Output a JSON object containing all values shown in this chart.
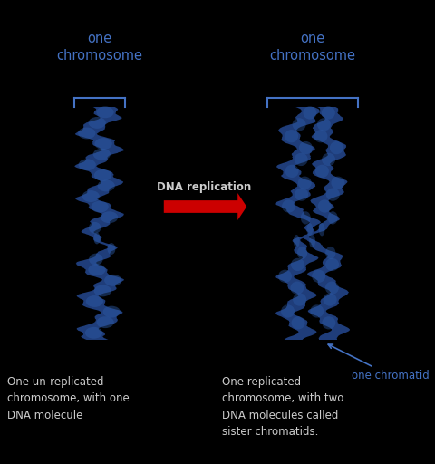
{
  "background_color": "#000000",
  "text_color_blue": "#4472c4",
  "text_color_white": "#cccccc",
  "label_left_title": "one\nchromosome",
  "label_right_title": "one\nchromosome",
  "label_chromatid": "one chromatid",
  "label_replication": "DNA replication",
  "caption_left": "One un-replicated\nchromosome, with one\nDNA molecule",
  "caption_right": "One replicated\nchromosome, with two\nDNA molecules called\nsister chromatids.",
  "chromosome_color": "#1f3d7a",
  "chromosome_highlight": "#2e5ca8",
  "arrow_color": "#cc0000",
  "figsize": [
    4.81,
    5.12
  ],
  "dpi": 100
}
